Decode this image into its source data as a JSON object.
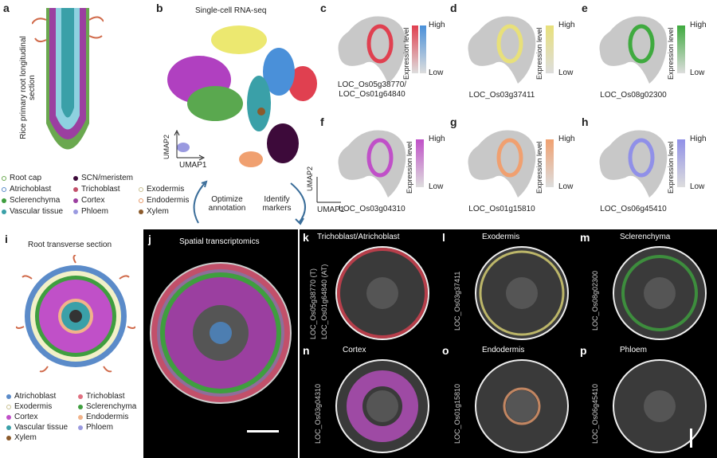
{
  "panels": {
    "a": {
      "label": "a",
      "title": "Rice primary root longitudinal section"
    },
    "b": {
      "label": "b",
      "title": "Single-cell RNA-seq",
      "umap1": "UMAP1",
      "umap2": "UMAP2",
      "cycle": [
        "Optimize annotation",
        "Identify markers"
      ]
    },
    "legend_a": [
      {
        "label": "Root cap",
        "color": "#6aa84f"
      },
      {
        "label": "SCN/meristem",
        "color": "#3d0a3a"
      },
      {
        "label": "Atrichoblast",
        "color": "#5b8bc9"
      },
      {
        "label": "Trichoblast",
        "color": "#c2506a"
      },
      {
        "label": "Exodermis",
        "color": "#f2f0c8"
      },
      {
        "label": "Sclerenchyma",
        "color": "#3f9e3f"
      },
      {
        "label": "Cortex",
        "color": "#9b3fa0"
      },
      {
        "label": "Endodermis",
        "color": "#f2b38a"
      },
      {
        "label": "Vascular tissue",
        "color": "#3aa0a8"
      },
      {
        "label": "Phloem",
        "color": "#9a9ae0"
      },
      {
        "label": "Xylem",
        "color": "#8b5a2b"
      }
    ],
    "expr": [
      {
        "label": "c",
        "gene": "LOC_Os05g38770/\nLOC_Os01g64840",
        "colors": [
          "#e04050",
          "#4a90d9"
        ],
        "high": "High",
        "low": "Low",
        "axis": "Expression level"
      },
      {
        "label": "d",
        "gene": "LOC_Os03g37411",
        "colors": [
          "#e8e07a"
        ],
        "high": "High",
        "low": "Low",
        "axis": "Expression level"
      },
      {
        "label": "e",
        "gene": "LOC_Os08g02300",
        "colors": [
          "#3faa3f"
        ],
        "high": "High",
        "low": "Low",
        "axis": "Expression level"
      },
      {
        "label": "f",
        "gene": "LOC_Os03g04310",
        "colors": [
          "#c050c8"
        ],
        "high": "High",
        "low": "Low",
        "axis": "Expression level"
      },
      {
        "label": "g",
        "gene": "LOC_Os01g15810",
        "colors": [
          "#f0a070"
        ],
        "high": "High",
        "low": "Low",
        "axis": "Expression level"
      },
      {
        "label": "h",
        "gene": "LOC_Os06g45410",
        "colors": [
          "#9090e8"
        ],
        "high": "High",
        "low": "Low",
        "axis": "Expression level"
      }
    ],
    "f_axes": {
      "umap1": "UMAP1",
      "umap2": "UMAP2"
    },
    "i": {
      "label": "i",
      "title": "Root transverse section"
    },
    "legend_i": [
      {
        "label": "Atrichoblast",
        "color": "#5b8bc9"
      },
      {
        "label": "Trichoblast",
        "color": "#e07080"
      },
      {
        "label": "Exodermis",
        "color": "#f2f0c8"
      },
      {
        "label": "Sclerenchyma",
        "color": "#3f9e3f"
      },
      {
        "label": "Cortex",
        "color": "#c050c8"
      },
      {
        "label": "Endodermis",
        "color": "#f2b38a"
      },
      {
        "label": "Vascular tissue",
        "color": "#3aa0a8"
      },
      {
        "label": "Phloem",
        "color": "#9a9ae0"
      },
      {
        "label": "Xylem",
        "color": "#8b5a2b"
      }
    ],
    "j": {
      "label": "j",
      "title": "Spatial transcriptomics"
    },
    "spatial": [
      {
        "label": "k",
        "title": "Trichoblast/Atrichoblast",
        "gene1": "LOC_Os05g38770 (T)",
        "gene2": "LOC_Os01g64840 (AT)",
        "color": "#e04050",
        "color2": "#4a90d9"
      },
      {
        "label": "l",
        "title": "Exodermis",
        "gene1": "LOC_Os03g37411",
        "color": "#e8e07a"
      },
      {
        "label": "m",
        "title": "Sclerenchyma",
        "gene1": "LOC_Os08g02300",
        "color": "#3faa3f"
      },
      {
        "label": "n",
        "title": "Cortex",
        "gene1": "LOC_Os03g04310",
        "color": "#c050c8"
      },
      {
        "label": "o",
        "title": "Endodermis",
        "gene1": "LOC_Os01g15810",
        "color": "#f0a070"
      },
      {
        "label": "p",
        "title": "Phloem",
        "gene1": "LOC_Os06g45410",
        "color": "#9090e8"
      }
    ]
  }
}
